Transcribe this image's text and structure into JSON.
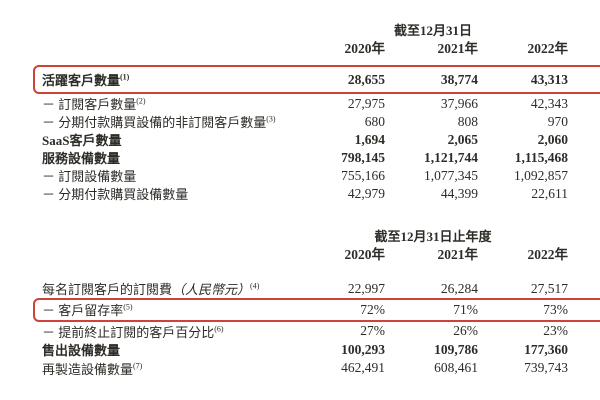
{
  "page": {
    "background_color": "#ffffff",
    "text_color": "#2f2c28",
    "highlight_color": "#cf4238"
  },
  "tables": [
    {
      "period_header": "截至12月31日",
      "year_headers": [
        "2020年",
        "2021年",
        "2022年"
      ],
      "rows": [
        {
          "label": "活躍客戶數量",
          "sup": "(1)",
          "values": [
            "28,655",
            "38,774",
            "43,313"
          ]
        },
        {
          "label": "－ 訂閱客戶數量",
          "sup": "(2)",
          "values": [
            "27,975",
            "37,966",
            "42,343"
          ]
        },
        {
          "label": "－ 分期付款購買設備的非訂閱客戶數量",
          "sup": "(3)",
          "values": [
            "680",
            "808",
            "970"
          ]
        },
        {
          "label": "SaaS客戶數量",
          "values": [
            "1,694",
            "2,065",
            "2,060"
          ]
        },
        {
          "label": "服務設備數量",
          "values": [
            "798,145",
            "1,121,744",
            "1,115,468"
          ]
        },
        {
          "label": "－ 訂閱設備數量",
          "values": [
            "755,166",
            "1,077,345",
            "1,092,857"
          ]
        },
        {
          "label": "－ 分期付款購買設備數量",
          "values": [
            "42,979",
            "44,399",
            "22,611"
          ]
        }
      ]
    },
    {
      "period_header": "截至12月31日止年度",
      "year_headers": [
        "2020年",
        "2021年",
        "2022年"
      ],
      "rows": [
        {
          "label": "每名訂閱客戶的訂閱費",
          "italic": "（人民幣元）",
          "sup": "(4)",
          "values": [
            "22,997",
            "26,284",
            "27,517"
          ]
        },
        {
          "label": "－ 客戶留存率",
          "sup": "(5)",
          "values": [
            "72%",
            "71%",
            "73%"
          ]
        },
        {
          "label": "－ 提前終止訂閱的客戶百分比",
          "sup": "(6)",
          "values": [
            "27%",
            "26%",
            "23%"
          ]
        },
        {
          "label": "售出設備數量",
          "values": [
            "100,293",
            "109,786",
            "177,360"
          ]
        },
        {
          "label": "再製造設備數量",
          "sup": "(7)",
          "values": [
            "462,491",
            "608,461",
            "739,743"
          ]
        }
      ]
    }
  ]
}
